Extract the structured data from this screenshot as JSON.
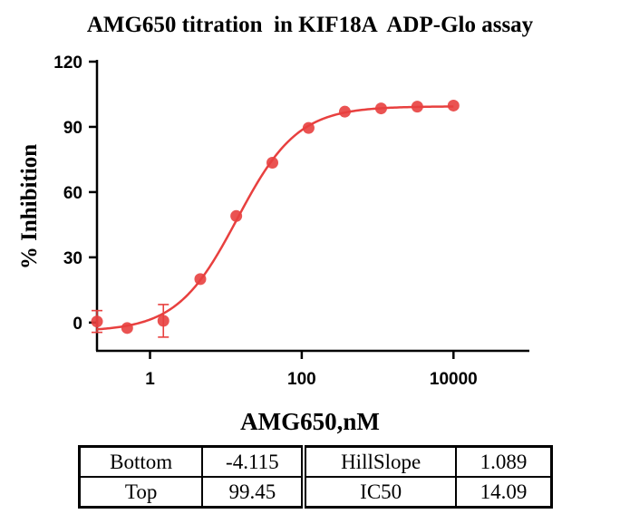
{
  "chart_data": {
    "type": "scatter",
    "title": "AMG650 titration  in KIF18A  ADP-Glo assay",
    "xlabel": "AMG650,nM",
    "ylabel": "% Inhibition",
    "xscale": "log",
    "xlim": [
      0.2,
      100000
    ],
    "ylim": [
      -13,
      120
    ],
    "xticks": [
      1,
      100,
      10000
    ],
    "xtick_labels": [
      "1",
      "100",
      "10000"
    ],
    "yticks": [
      0,
      30,
      60,
      90,
      120
    ],
    "ytick_labels": [
      "0",
      "30",
      "60",
      "90",
      "120"
    ],
    "grid": false,
    "color": "#e8403f",
    "series": [
      {
        "points": [
          {
            "x": 0.2,
            "y": 0.5,
            "error": 5
          },
          {
            "x": 0.5,
            "y": -2.5
          },
          {
            "x": 1.5,
            "y": 0.8,
            "error": 7.5
          },
          {
            "x": 4.6,
            "y": 20
          },
          {
            "x": 13.7,
            "y": 49
          },
          {
            "x": 41,
            "y": 73.5
          },
          {
            "x": 123,
            "y": 89.5
          },
          {
            "x": 370,
            "y": 97
          },
          {
            "x": 1111,
            "y": 98.5
          },
          {
            "x": 3333,
            "y": 99.3
          },
          {
            "x": 10000,
            "y": 99.8
          }
        ]
      }
    ],
    "fit": {
      "bottom": -4.115,
      "top": 99.45,
      "hillslope": 1.089,
      "ic50": 14.09
    }
  },
  "table": {
    "rows": [
      [
        "Bottom",
        "-4.115",
        "HillSlope",
        "1.089"
      ],
      [
        "Top",
        "99.45",
        "IC50",
        "14.09"
      ]
    ]
  }
}
